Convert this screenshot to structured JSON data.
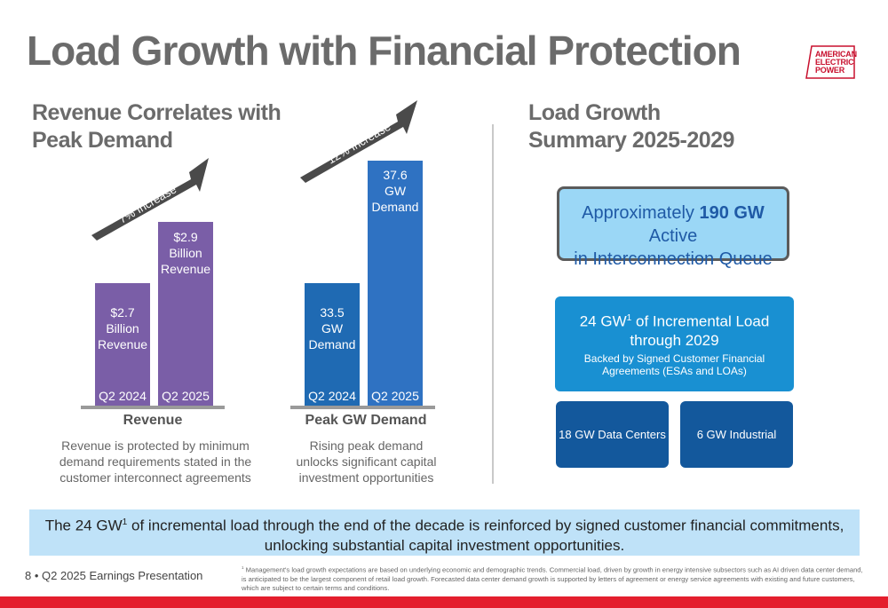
{
  "title": "Load Growth with Financial Protection",
  "logo": {
    "line1": "AMERICAN",
    "line2": "ELECTRIC",
    "line3": "POWER"
  },
  "left": {
    "heading_line1": "Revenue Correlates with",
    "heading_line2": "Peak Demand",
    "revenue": {
      "arrow_label": "7% Increase",
      "bars": [
        {
          "value_line1": "$2.7",
          "value_line2": "Billion",
          "value_line3": "Revenue",
          "period": "Q2 2024",
          "value": 2.7
        },
        {
          "value_line1": "$2.9",
          "value_line2": "Billion",
          "value_line3": "Revenue",
          "period": "Q2 2025",
          "value": 2.9
        }
      ],
      "label": "Revenue",
      "desc_line1": "Revenue is protected by minimum",
      "desc_line2": "demand requirements stated in the",
      "desc_line3": "customer interconnect agreements"
    },
    "peak": {
      "arrow_label": "12% Increase",
      "bars": [
        {
          "value_line1": "33.5",
          "value_line2": "GW",
          "value_line3": "Demand",
          "period": "Q2 2024",
          "value": 33.5
        },
        {
          "value_line1": "37.6",
          "value_line2": "GW",
          "value_line3": "Demand",
          "period": "Q2 2025",
          "value": 37.6
        }
      ],
      "label": "Peak GW Demand",
      "desc_line1": "Rising peak demand",
      "desc_line2": "unlocks significant capital",
      "desc_line3": "investment opportunities"
    }
  },
  "right": {
    "heading_line1": "Load Growth",
    "heading_line2": "Summary 2025-2029",
    "queue": {
      "prefix": "Approximately ",
      "bold": "190 GW",
      "suffix": " Active",
      "line2": "in Interconnection Queue"
    },
    "incremental": {
      "main_prefix": "24 GW",
      "main_sup": "1",
      "main_suffix": " of Incremental Load through 2029",
      "sub": "Backed by Signed Customer Financial Agreements (ESAs and LOAs)"
    },
    "data_centers": "18 GW Data Centers",
    "industrial": "6 GW Industrial"
  },
  "banner": {
    "prefix": "The 24 GW",
    "sup": "1",
    "suffix": " of incremental load through the end of the decade is reinforced by signed customer financial commitments,",
    "line2": "unlocking substantial capital investment opportunities."
  },
  "footer": {
    "page": "8 • Q2 2025 Earnings Presentation",
    "footnote_sup": "1",
    "footnote": " Management's load growth expectations are based on underlying economic and demographic trends. Commercial load, driven by growth in energy intensive subsectors such as AI driven data center demand, is anticipated to be the largest component of retail load growth. Forecasted data center demand growth is supported by letters of agreement or energy service agreements with existing and future customers, which are subject to certain terms and conditions."
  },
  "colors": {
    "purple": "#7a5ea7",
    "blue": "#1f6ab3",
    "accent_red": "#e41e2d",
    "light_blue": "#bfe2f8"
  }
}
